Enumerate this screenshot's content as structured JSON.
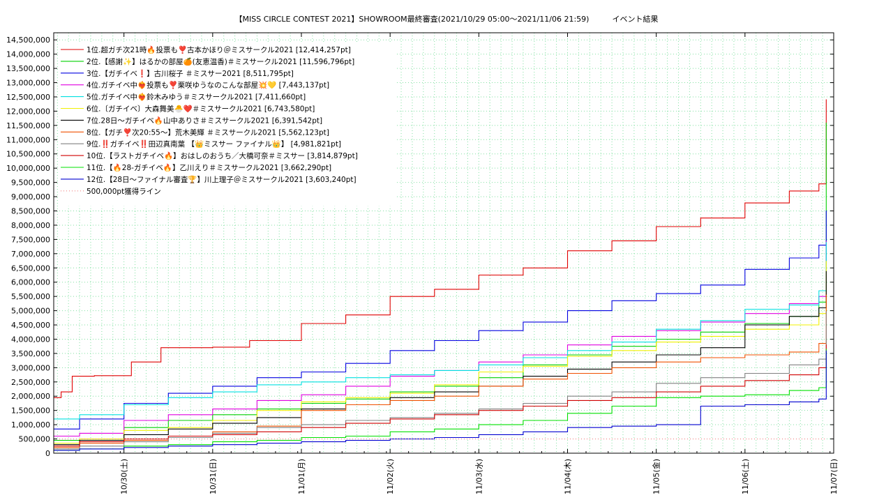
{
  "chart_data": {
    "type": "line",
    "title": "【MISS CIRCLE CONTEST 2021】SHOWROOM最終審査(2021/10/29 05:00～2021/11/06 21:59)　　　イベント結果",
    "xlabel": "",
    "ylabel": "",
    "x_ticks": [
      "10/30(土)",
      "10/31(日)",
      "11/01(月)",
      "11/02(火)",
      "11/03(水)",
      "11/04(木)",
      "11/05(金)",
      "11/06(土)",
      "11/07(日)"
    ],
    "xlim": [
      "2021/10/29 05:00",
      "2021/11/07 00:00"
    ],
    "ylim": [
      0,
      14750000
    ],
    "y_ticks": [
      "0",
      "500,000",
      "1,000,000",
      "1,500,000",
      "2,000,000",
      "2,500,000",
      "3,000,000",
      "3,500,000",
      "4,000,000",
      "4,500,000",
      "5,000,000",
      "5,500,000",
      "6,000,000",
      "6,500,000",
      "7,000,000",
      "7,500,000",
      "8,000,000",
      "8,500,000",
      "9,000,000",
      "9,500,000",
      "10,000,000",
      "10,500,000",
      "11,000,000",
      "11,500,000",
      "12,000,000",
      "12,500,000",
      "13,000,000",
      "13,500,000",
      "14,000,000",
      "14,500,000"
    ],
    "grid": true,
    "legend_position": "top-left",
    "series": [
      {
        "name": " 1位.超ガチ次21時🔥投票も❣️古本かほり＠ミスサークル2021 [12,414,257pt]",
        "color": "#e00000",
        "x": [
          "10/29 05:00",
          "10/29 07:00",
          "10/29 10:00",
          "10/29 16:00",
          "10/30 02:00",
          "10/30 10:00",
          "10/31 00:00",
          "10/31 10:00",
          "11/01 00:00",
          "11/01 12:00",
          "11/02 00:00",
          "11/02 12:00",
          "11/03 00:00",
          "11/03 12:00",
          "11/04 00:00",
          "11/04 12:00",
          "11/05 00:00",
          "11/05 12:00",
          "11/06 00:00",
          "11/06 12:00",
          "11/06 20:00",
          "11/06 21:59"
        ],
        "values": [
          1950000,
          2150000,
          2700000,
          2720000,
          3200000,
          3700000,
          3720000,
          3950000,
          4550000,
          4850000,
          5500000,
          5750000,
          6250000,
          6500000,
          7100000,
          7450000,
          7950000,
          8250000,
          8780000,
          9200000,
          9450000,
          12414257
        ]
      },
      {
        "name": " 2位.【感謝✨】はるかの部屋🍊(友恵温香)＃ミスサークル2021 [11,596,796pt]",
        "color": "#00d000",
        "x": [
          "10/29 05:00",
          "10/29 12:00",
          "10/30 00:00",
          "10/30 12:00",
          "10/31 00:00",
          "10/31 12:00",
          "11/01 00:00",
          "11/01 12:00",
          "11/02 00:00",
          "11/02 12:00",
          "11/03 00:00",
          "11/03 12:00",
          "11/04 00:00",
          "11/04 12:00",
          "11/05 00:00",
          "11/05 12:00",
          "11/06 00:00",
          "11/06 12:00",
          "11/06 20:00",
          "11/06 21:59"
        ],
        "values": [
          450000,
          500000,
          900000,
          1150000,
          1350000,
          1550000,
          1750000,
          1900000,
          2150000,
          2350000,
          2650000,
          3100000,
          3450000,
          3750000,
          4000000,
          4250000,
          4550000,
          4800000,
          5300000,
          11596796
        ]
      },
      {
        "name": " 3位.【ガチイベ❗️】古川桜子 ＃ミスサー2021 [8,511,795pt]",
        "color": "#0000e0",
        "x": [
          "10/29 05:00",
          "10/29 12:00",
          "10/30 00:00",
          "10/30 12:00",
          "10/31 00:00",
          "10/31 12:00",
          "11/01 00:00",
          "11/01 12:00",
          "11/02 00:00",
          "11/02 12:00",
          "11/03 00:00",
          "11/03 12:00",
          "11/04 00:00",
          "11/04 12:00",
          "11/05 00:00",
          "11/05 12:00",
          "11/06 00:00",
          "11/06 12:00",
          "11/06 20:00",
          "11/06 21:59"
        ],
        "values": [
          850000,
          1200000,
          1750000,
          2100000,
          2350000,
          2650000,
          2850000,
          3150000,
          3600000,
          3950000,
          4300000,
          4600000,
          5000000,
          5350000,
          5600000,
          5900000,
          6450000,
          6850000,
          7300000,
          8511795
        ]
      },
      {
        "name": " 4位.ガチイベ中❤️‍🔥投票も❣️栗咲ゆうなのこんな部屋💥💛 [7,443,137pt]",
        "color": "#e000e0",
        "x": [
          "10/29 05:00",
          "10/29 12:00",
          "10/30 00:00",
          "10/30 12:00",
          "10/31 00:00",
          "10/31 12:00",
          "11/01 00:00",
          "11/01 12:00",
          "11/02 00:00",
          "11/02 12:00",
          "11/03 00:00",
          "11/03 12:00",
          "11/04 00:00",
          "11/04 12:00",
          "11/05 00:00",
          "11/05 12:00",
          "11/06 00:00",
          "11/06 12:00",
          "11/06 20:00",
          "11/06 21:59"
        ],
        "values": [
          600000,
          700000,
          1150000,
          1350000,
          1550000,
          1850000,
          2050000,
          2350000,
          2700000,
          2900000,
          3200000,
          3450000,
          3800000,
          4100000,
          4300000,
          4600000,
          4900000,
          5250000,
          5500000,
          7443137
        ]
      },
      {
        "name": " 5位.ガチイベ中❤️‍🔥鈴木みゆう＃ミスサークル2021 [7,411,660pt]",
        "color": "#00e0e0",
        "x": [
          "10/29 05:00",
          "10/29 12:00",
          "10/30 00:00",
          "10/30 12:00",
          "10/31 00:00",
          "10/31 12:00",
          "11/01 00:00",
          "11/01 12:00",
          "11/02 00:00",
          "11/02 12:00",
          "11/03 00:00",
          "11/03 12:00",
          "11/04 00:00",
          "11/04 12:00",
          "11/05 00:00",
          "11/05 12:00",
          "11/06 00:00",
          "11/06 12:00",
          "11/06 20:00",
          "11/06 21:59"
        ],
        "values": [
          1200000,
          1350000,
          1700000,
          1950000,
          2150000,
          2400000,
          2500000,
          2650000,
          2750000,
          2900000,
          3100000,
          3350000,
          3600000,
          3900000,
          4350000,
          4650000,
          5050000,
          5200000,
          5700000,
          7411660
        ]
      },
      {
        "name": " 6位.〔ガチイベ〕大森舞美🐣❤️＃ミスサークル2021 [6,743,580pt]",
        "color": "#f0f000",
        "x": [
          "10/29 05:00",
          "10/29 12:00",
          "10/30 00:00",
          "10/30 12:00",
          "10/31 00:00",
          "10/31 12:00",
          "11/01 00:00",
          "11/01 12:00",
          "11/02 00:00",
          "11/02 12:00",
          "11/03 00:00",
          "11/03 12:00",
          "11/04 00:00",
          "11/04 12:00",
          "11/05 00:00",
          "11/05 12:00",
          "11/06 00:00",
          "11/06 12:00",
          "11/06 20:00",
          "11/06 21:59"
        ],
        "values": [
          350000,
          500000,
          800000,
          900000,
          1150000,
          1500000,
          1800000,
          1950000,
          2100000,
          2400000,
          2850000,
          3050000,
          3400000,
          3600000,
          3900000,
          4100000,
          4350000,
          4500000,
          4900000,
          6743580
        ]
      },
      {
        "name": " 7位.28日～ガチイベ🔥山中ありさ＃ミスサークル2021 [6,391,542pt]",
        "color": "#000000",
        "x": [
          "10/29 05:00",
          "10/29 12:00",
          "10/30 00:00",
          "10/30 12:00",
          "10/31 00:00",
          "10/31 12:00",
          "11/01 00:00",
          "11/01 12:00",
          "11/02 00:00",
          "11/02 12:00",
          "11/03 00:00",
          "11/03 12:00",
          "11/04 00:00",
          "11/04 12:00",
          "11/05 00:00",
          "11/05 12:00",
          "11/06 00:00",
          "11/06 12:00",
          "11/06 20:00",
          "11/06 21:59"
        ],
        "values": [
          300000,
          450000,
          650000,
          850000,
          1050000,
          1250000,
          1550000,
          1700000,
          1950000,
          2150000,
          2350000,
          2700000,
          2950000,
          3200000,
          3450000,
          3700000,
          4500000,
          4800000,
          5100000,
          6391542
        ]
      },
      {
        "name": " 8位.【ガチ❣️次20:55〜】荒木美輝 ＃ミスサークル2021 [5,562,123pt]",
        "color": "#f05000",
        "x": [
          "10/29 05:00",
          "10/29 12:00",
          "10/30 00:00",
          "10/30 12:00",
          "10/31 00:00",
          "10/31 12:00",
          "11/01 00:00",
          "11/01 12:00",
          "11/02 00:00",
          "11/02 12:00",
          "11/03 00:00",
          "11/03 12:00",
          "11/04 00:00",
          "11/04 12:00",
          "11/05 00:00",
          "11/05 12:00",
          "11/06 00:00",
          "11/06 12:00",
          "11/06 20:00",
          "11/06 21:59"
        ],
        "values": [
          200000,
          350000,
          450000,
          550000,
          750000,
          950000,
          1500000,
          1700000,
          1850000,
          2000000,
          2350000,
          2600000,
          2800000,
          3000000,
          3200000,
          3350000,
          3450000,
          3550000,
          3850000,
          5562123
        ]
      },
      {
        "name": " 9位.‼️ガチイベ‼️田辺真南葉 【👑ミスサー ファイナル👑】 [4,981,821pt]",
        "color": "#808080",
        "x": [
          "10/29 05:00",
          "10/29 12:00",
          "10/30 00:00",
          "10/30 12:00",
          "10/31 00:00",
          "10/31 12:00",
          "11/01 00:00",
          "11/01 12:00",
          "11/02 00:00",
          "11/02 12:00",
          "11/03 00:00",
          "11/03 12:00",
          "11/04 00:00",
          "11/04 12:00",
          "11/05 00:00",
          "11/05 12:00",
          "11/06 00:00",
          "11/06 12:00",
          "11/06 20:00",
          "11/06 21:59"
        ],
        "values": [
          150000,
          250000,
          400000,
          550000,
          700000,
          900000,
          1000000,
          1150000,
          1250000,
          1400000,
          1550000,
          1750000,
          2000000,
          2150000,
          2450000,
          2650000,
          2800000,
          3100000,
          3300000,
          4981821
        ]
      },
      {
        "name": "10位.【ラストガチイベ🔥】おはしのおうち／大橋可奈＃ミスサー [3,814,879pt]",
        "color": "#d00000",
        "x": [
          "10/29 05:00",
          "10/29 12:00",
          "10/30 00:00",
          "10/30 12:00",
          "10/31 00:00",
          "10/31 12:00",
          "11/01 00:00",
          "11/01 12:00",
          "11/02 00:00",
          "11/02 12:00",
          "11/03 00:00",
          "11/03 12:00",
          "11/04 00:00",
          "11/04 12:00",
          "11/05 00:00",
          "11/05 12:00",
          "11/06 00:00",
          "11/06 12:00",
          "11/06 20:00",
          "11/06 21:59"
        ],
        "values": [
          250000,
          400000,
          500000,
          600000,
          650000,
          750000,
          900000,
          1050000,
          1200000,
          1350000,
          1500000,
          1650000,
          1850000,
          1950000,
          2150000,
          2350000,
          2550000,
          2750000,
          3000000,
          3814879
        ]
      },
      {
        "name": "11位.【🔥28-ガチイベ🔥】乙川えり＃ミスサークル2021 [3,662,290pt]",
        "color": "#00e000",
        "x": [
          "10/29 05:00",
          "10/29 12:00",
          "10/30 00:00",
          "10/30 12:00",
          "10/31 00:00",
          "10/31 12:00",
          "11/01 00:00",
          "11/01 12:00",
          "11/02 00:00",
          "11/02 12:00",
          "11/03 00:00",
          "11/03 12:00",
          "11/04 00:00",
          "11/04 12:00",
          "11/05 00:00",
          "11/05 12:00",
          "11/06 00:00",
          "11/06 12:00",
          "11/06 20:00",
          "11/06 21:59"
        ],
        "values": [
          100000,
          150000,
          250000,
          300000,
          400000,
          450000,
          550000,
          600000,
          750000,
          850000,
          1000000,
          1150000,
          1400000,
          1650000,
          1950000,
          2000000,
          2050000,
          2200000,
          2300000,
          3662290
        ]
      },
      {
        "name": "12位.【28日〜ファイナル審査🏆】川上理子＠ミスサークル2021 [3,603,240pt]",
        "color": "#0000d0",
        "x": [
          "10/29 05:00",
          "10/29 12:00",
          "10/30 00:00",
          "10/30 12:00",
          "10/31 00:00",
          "10/31 12:00",
          "11/01 00:00",
          "11/01 12:00",
          "11/02 00:00",
          "11/02 12:00",
          "11/03 00:00",
          "11/03 12:00",
          "11/04 00:00",
          "11/04 12:00",
          "11/05 00:00",
          "11/05 12:00",
          "11/06 00:00",
          "11/06 12:00",
          "11/06 20:00",
          "11/06 21:59"
        ],
        "values": [
          100000,
          150000,
          200000,
          250000,
          300000,
          350000,
          400000,
          450000,
          500000,
          550000,
          650000,
          750000,
          900000,
          950000,
          1000000,
          1650000,
          1700000,
          1800000,
          1900000,
          3603240
        ]
      },
      {
        "name": "500,000pt獲得ライン",
        "color": "#f08080",
        "dotted": true,
        "x": [
          "10/29 05:00",
          "11/06 21:59"
        ],
        "values": [
          500000,
          500000
        ]
      }
    ]
  },
  "colors": {
    "grid": "#80e0a0",
    "axis": "#000000",
    "background": "#ffffff"
  }
}
